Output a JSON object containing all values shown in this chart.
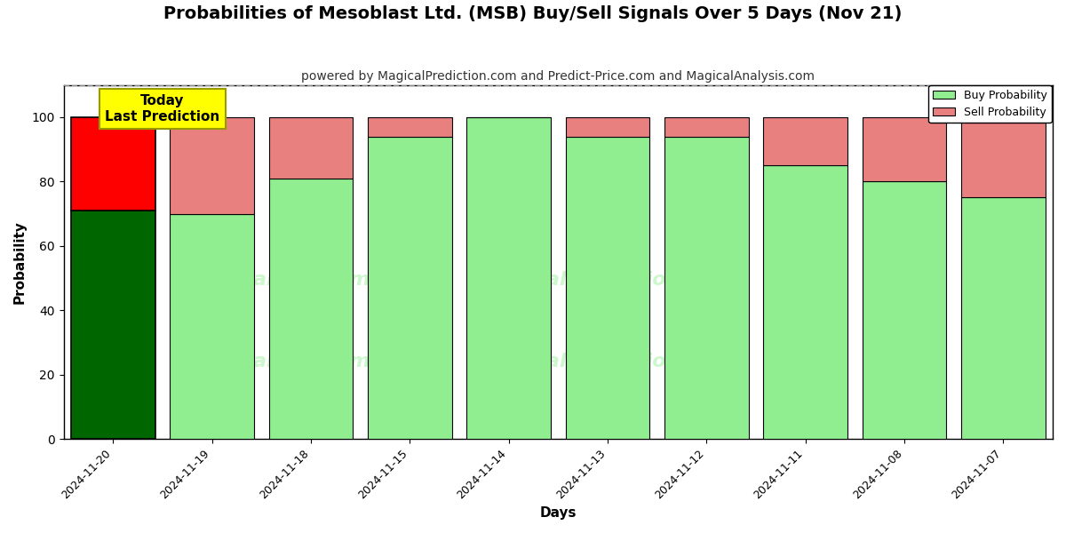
{
  "title": "Probabilities of Mesoblast Ltd. (MSB) Buy/Sell Signals Over 5 Days (Nov 21)",
  "subtitle": "powered by MagicalPrediction.com and Predict-Price.com and MagicalAnalysis.com",
  "xlabel": "Days",
  "ylabel": "Probability",
  "dates": [
    "2024-11-20",
    "2024-11-19",
    "2024-11-18",
    "2024-11-15",
    "2024-11-14",
    "2024-11-13",
    "2024-11-12",
    "2024-11-11",
    "2024-11-08",
    "2024-11-07"
  ],
  "buy_values": [
    71,
    70,
    81,
    94,
    100,
    94,
    94,
    85,
    80,
    75
  ],
  "sell_values": [
    29,
    30,
    19,
    6,
    0,
    6,
    6,
    15,
    20,
    25
  ],
  "today_buy_color": "#006600",
  "today_sell_color": "#ff0000",
  "other_buy_color": "#90ee90",
  "other_sell_color": "#e88080",
  "bar_edge_color": "#000000",
  "today_annotation_bg": "#ffff00",
  "today_annotation_text": "Today\nLast Prediction",
  "legend_buy_label": "Buy Probability",
  "legend_sell_label": "Sell Probability",
  "ylim": [
    0,
    110
  ],
  "yticks": [
    0,
    20,
    40,
    60,
    80,
    100
  ],
  "dashed_line_y": 110,
  "watermark_color": "#90ee90",
  "watermark_alpha": 0.45,
  "grid_color": "#ffffff",
  "grid_linewidth": 1.0,
  "background_color": "#ffffff",
  "plot_bg_color": "#ffffff",
  "title_fontsize": 14,
  "subtitle_fontsize": 10,
  "bar_width": 0.85
}
